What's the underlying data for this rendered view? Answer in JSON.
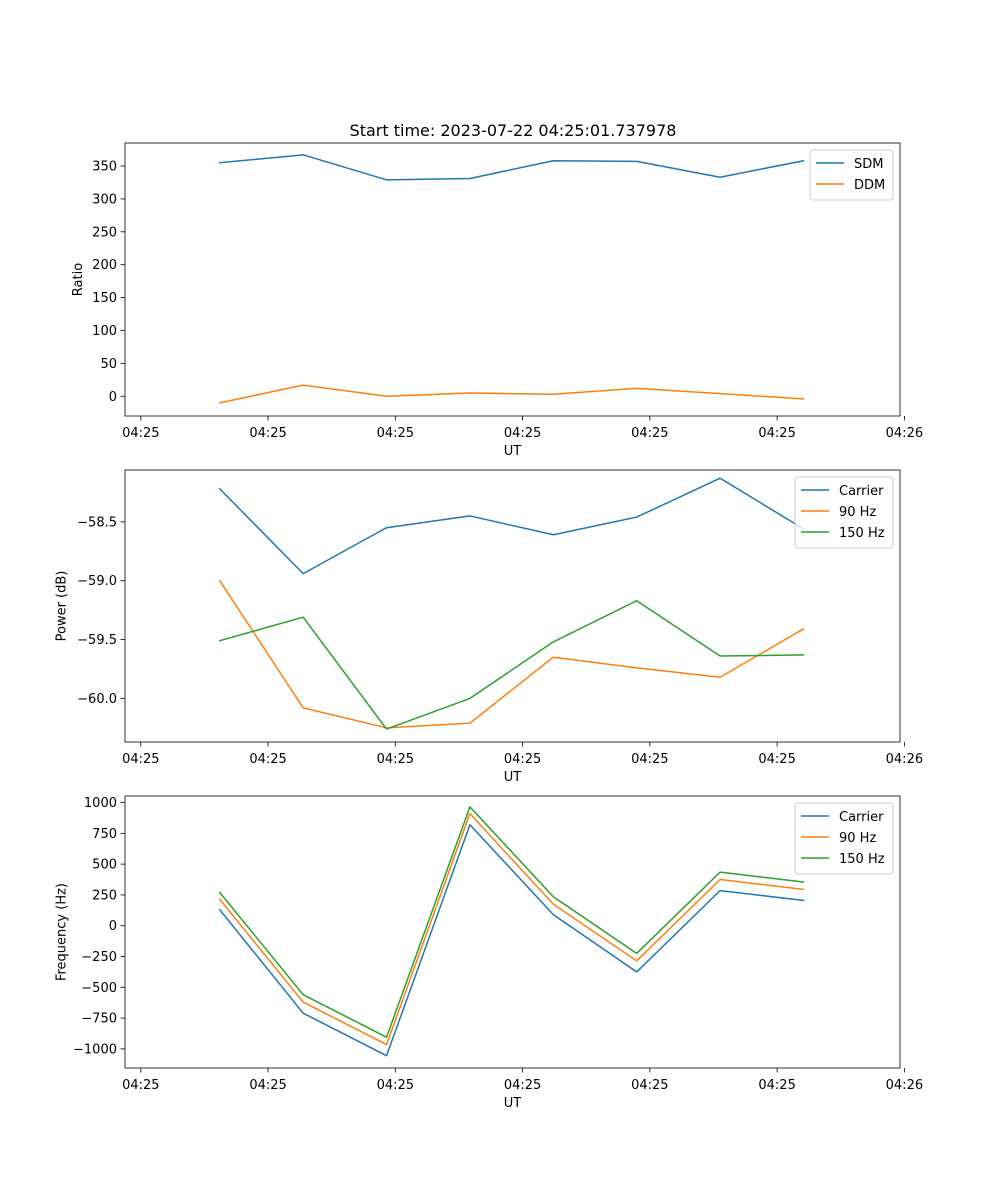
{
  "figure": {
    "title": "Start time: 2023-07-22 04:25:01.737978"
  },
  "colors": {
    "blue": "#1f77b4",
    "orange": "#ff7f0e",
    "green": "#2ca02c"
  },
  "chart_data": [
    {
      "type": "line",
      "title": "Start time: 2023-07-22 04:25:01.737978",
      "xlabel": "UT",
      "ylabel": "Ratio",
      "xlim": [
        -0.38,
        8.45
      ],
      "ylim": [
        -30,
        385
      ],
      "x_tick_positions": [
        -0.2,
        1.25,
        2.7,
        4.15,
        5.6,
        7.05,
        8.5
      ],
      "x_tick_labels": [
        "04:25",
        "04:25",
        "04:25",
        "04:25",
        "04:25",
        "04:25",
        "04:26"
      ],
      "y_ticks": [
        0,
        50,
        100,
        150,
        200,
        250,
        300,
        350
      ],
      "y_tick_labels": [
        "0",
        "50",
        "100",
        "150",
        "200",
        "250",
        "300",
        "350"
      ],
      "legend_position": "upper-right",
      "x": [
        0.7,
        1.65,
        2.6,
        3.55,
        4.5,
        5.45,
        6.4,
        7.35
      ],
      "series": [
        {
          "name": "SDM",
          "color": "#1f77b4",
          "values": [
            355,
            367,
            329,
            331,
            358,
            357,
            333,
            358
          ]
        },
        {
          "name": "DDM",
          "color": "#ff7f0e",
          "values": [
            -10,
            17,
            0,
            5,
            3,
            12,
            4,
            -4
          ]
        }
      ]
    },
    {
      "type": "line",
      "title": "",
      "xlabel": "UT",
      "ylabel": "Power (dB)",
      "xlim": [
        -0.38,
        8.45
      ],
      "ylim": [
        -60.37,
        -58.06
      ],
      "x_tick_positions": [
        -0.2,
        1.25,
        2.7,
        4.15,
        5.6,
        7.05,
        8.5
      ],
      "x_tick_labels": [
        "04:25",
        "04:25",
        "04:25",
        "04:25",
        "04:25",
        "04:25",
        "04:26"
      ],
      "y_ticks": [
        -60.0,
        -59.5,
        -59.0,
        -58.5
      ],
      "y_tick_labels": [
        "−60.0",
        "−59.5",
        "−59.0",
        "−58.5"
      ],
      "legend_position": "upper-right",
      "x": [
        0.7,
        1.65,
        2.6,
        3.55,
        4.5,
        5.45,
        6.4,
        7.35
      ],
      "series": [
        {
          "name": "Carrier",
          "color": "#1f77b4",
          "values": [
            -58.22,
            -58.94,
            -58.55,
            -58.45,
            -58.61,
            -58.46,
            -58.13,
            -58.56
          ]
        },
        {
          "name": "90 Hz",
          "color": "#ff7f0e",
          "values": [
            -59.0,
            -60.08,
            -60.25,
            -60.21,
            -59.65,
            -59.74,
            -59.82,
            -59.41
          ]
        },
        {
          "name": "150 Hz",
          "color": "#2ca02c",
          "values": [
            -59.51,
            -59.31,
            -60.26,
            -60.0,
            -59.52,
            -59.17,
            -59.64,
            -59.63
          ]
        }
      ]
    },
    {
      "type": "line",
      "title": "",
      "xlabel": "UT",
      "ylabel": "Frequency (Hz)",
      "xlim": [
        -0.38,
        8.45
      ],
      "ylim": [
        -1155,
        1053
      ],
      "x_tick_positions": [
        -0.2,
        1.25,
        2.7,
        4.15,
        5.6,
        7.05,
        8.5
      ],
      "x_tick_labels": [
        "04:25",
        "04:25",
        "04:25",
        "04:25",
        "04:25",
        "04:25",
        "04:26"
      ],
      "y_ticks": [
        -1000,
        -750,
        -500,
        -250,
        0,
        250,
        500,
        750,
        1000
      ],
      "y_tick_labels": [
        "−1000",
        "−750",
        "−500",
        "−250",
        "0",
        "250",
        "500",
        "750",
        "1000"
      ],
      "legend_position": "upper-right",
      "x": [
        0.7,
        1.65,
        2.6,
        3.55,
        4.5,
        5.45,
        6.4,
        7.35
      ],
      "series": [
        {
          "name": "Carrier",
          "color": "#1f77b4",
          "values": [
            130,
            -710,
            -1055,
            820,
            90,
            -375,
            285,
            205
          ]
        },
        {
          "name": "90 Hz",
          "color": "#ff7f0e",
          "values": [
            215,
            -620,
            -965,
            910,
            175,
            -285,
            375,
            295
          ]
        },
        {
          "name": "150 Hz",
          "color": "#2ca02c",
          "values": [
            270,
            -560,
            -905,
            965,
            235,
            -225,
            435,
            355
          ]
        }
      ]
    }
  ]
}
